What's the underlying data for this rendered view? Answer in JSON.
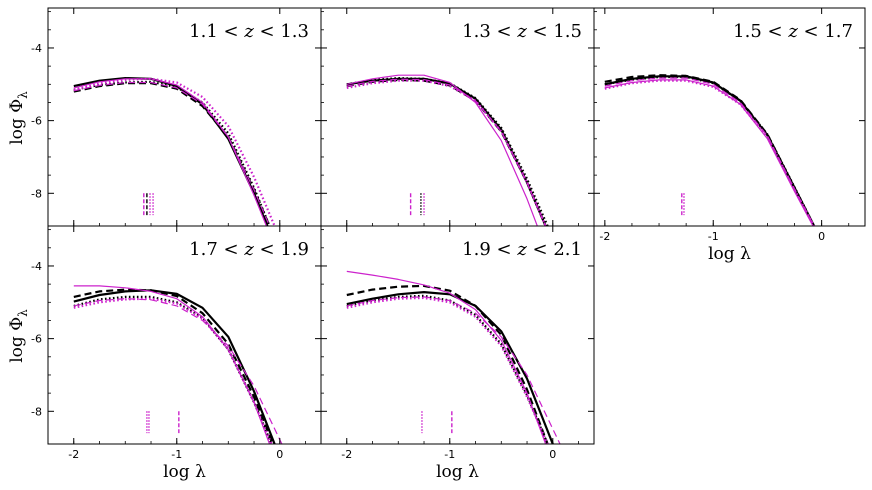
{
  "figure": {
    "ylabel_text": "log Φ",
    "ylabel_sub": "λ",
    "xlabel_text": "log λ"
  },
  "chart_data": [
    {
      "type": "line",
      "panel": "1.1<z<1.3",
      "label": {
        "a": "1.1",
        "b": "1.3"
      },
      "xlim": [
        -2.25,
        0.4
      ],
      "ylim": [
        -8.9,
        -2.9
      ],
      "yticks": [
        -4,
        -6,
        -8
      ],
      "xticks": [
        -2,
        -1,
        0
      ],
      "show_ytick_labels": true,
      "show_xtick_labels": false,
      "show_xlabel": false,
      "series": [
        {
          "color": "#000000",
          "style": "solid",
          "width": 2.2,
          "x": [
            -2.0,
            -1.75,
            -1.5,
            -1.25,
            -1.0,
            -0.75,
            -0.5,
            -0.25,
            -0.12
          ],
          "y": [
            -5.05,
            -4.9,
            -4.83,
            -4.85,
            -5.05,
            -5.55,
            -6.5,
            -8.0,
            -8.9
          ]
        },
        {
          "color": "#000000",
          "style": "dashed",
          "width": 2.2,
          "x": [
            -2.0,
            -1.75,
            -1.5,
            -1.25,
            -1.0,
            -0.75,
            -0.5,
            -0.25,
            -0.1
          ],
          "y": [
            -5.2,
            -5.05,
            -4.97,
            -4.97,
            -5.12,
            -5.6,
            -6.45,
            -7.9,
            -8.9
          ]
        },
        {
          "color": "#000000",
          "style": "dotted",
          "width": 2.2,
          "x": [
            -2.0,
            -1.75,
            -1.5,
            -1.25,
            -1.0,
            -0.75,
            -0.5,
            -0.25,
            -0.1
          ],
          "y": [
            -5.15,
            -5.02,
            -4.95,
            -4.93,
            -5.08,
            -5.5,
            -6.35,
            -7.85,
            -8.9
          ]
        },
        {
          "color": "#cc22cc",
          "style": "solid",
          "width": 1.2,
          "x": [
            -2.0,
            -1.75,
            -1.5,
            -1.25,
            -1.0,
            -0.75,
            -0.5,
            -0.25,
            -0.13
          ],
          "y": [
            -5.1,
            -4.93,
            -4.85,
            -4.85,
            -5.02,
            -5.5,
            -6.45,
            -8.05,
            -8.9
          ]
        },
        {
          "color": "#cc22cc",
          "style": "dashed",
          "width": 1.2,
          "x": [
            -2.0,
            -1.75,
            -1.5,
            -1.25,
            -1.0,
            -0.75,
            -0.5,
            -0.25,
            -0.1
          ],
          "y": [
            -5.18,
            -5.03,
            -4.95,
            -4.95,
            -5.1,
            -5.55,
            -6.45,
            -7.9,
            -8.9
          ]
        },
        {
          "color": "#cc22cc",
          "style": "dotted",
          "width": 2.2,
          "x": [
            -2.0,
            -1.75,
            -1.5,
            -1.25,
            -1.0,
            -0.75,
            -0.5,
            -0.25,
            -0.05
          ],
          "y": [
            -5.15,
            -4.98,
            -4.88,
            -4.85,
            -4.95,
            -5.35,
            -6.15,
            -7.55,
            -8.9
          ]
        }
      ],
      "markers": [
        {
          "x": -1.32,
          "color": "#cc22cc",
          "style": "dashed"
        },
        {
          "x": -1.29,
          "color": "#000000",
          "style": "dashed"
        },
        {
          "x": -1.26,
          "color": "#cc22cc",
          "style": "dotted"
        },
        {
          "x": -1.23,
          "color": "#cc22cc",
          "style": "dotted"
        }
      ]
    },
    {
      "type": "line",
      "panel": "1.3<z<1.5",
      "label": {
        "a": "1.3",
        "b": "1.5"
      },
      "xlim": [
        -2.25,
        0.4
      ],
      "ylim": [
        -8.9,
        -2.9
      ],
      "yticks": [
        -4,
        -6,
        -8
      ],
      "xticks": [
        -2,
        -1,
        0
      ],
      "show_ytick_labels": false,
      "show_xtick_labels": false,
      "show_xlabel": false,
      "series": [
        {
          "color": "#000000",
          "style": "solid",
          "width": 2.2,
          "x": [
            -2.0,
            -1.75,
            -1.5,
            -1.25,
            -1.0,
            -0.75,
            -0.5,
            -0.25,
            -0.07
          ],
          "y": [
            -5.0,
            -4.9,
            -4.85,
            -4.85,
            -4.98,
            -5.4,
            -6.25,
            -7.7,
            -8.9
          ]
        },
        {
          "color": "#000000",
          "style": "dashed",
          "width": 2.2,
          "x": [
            -2.0,
            -1.75,
            -1.5,
            -1.25,
            -1.0,
            -0.75,
            -0.5,
            -0.25,
            -0.07
          ],
          "y": [
            -5.05,
            -4.93,
            -4.88,
            -4.9,
            -5.03,
            -5.45,
            -6.3,
            -7.7,
            -8.9
          ]
        },
        {
          "color": "#000000",
          "style": "dotted",
          "width": 2.2,
          "x": [
            -2.0,
            -1.75,
            -1.5,
            -1.25,
            -1.0,
            -0.75,
            -0.5,
            -0.25,
            -0.05
          ],
          "y": [
            -5.0,
            -4.88,
            -4.83,
            -4.85,
            -4.97,
            -5.38,
            -6.2,
            -7.6,
            -8.9
          ]
        },
        {
          "color": "#cc22cc",
          "style": "solid",
          "width": 1.2,
          "x": [
            -2.0,
            -1.75,
            -1.5,
            -1.25,
            -1.0,
            -0.75,
            -0.5,
            -0.25,
            -0.15
          ],
          "y": [
            -5.0,
            -4.85,
            -4.75,
            -4.75,
            -4.95,
            -5.5,
            -6.55,
            -8.15,
            -8.9
          ]
        },
        {
          "color": "#cc22cc",
          "style": "dashed",
          "width": 1.2,
          "x": [
            -2.0,
            -1.75,
            -1.5,
            -1.25,
            -1.0,
            -0.75,
            -0.5,
            -0.25,
            -0.07
          ],
          "y": [
            -5.05,
            -4.92,
            -4.86,
            -4.87,
            -5.02,
            -5.45,
            -6.3,
            -7.7,
            -8.9
          ]
        },
        {
          "color": "#cc22cc",
          "style": "dotted",
          "width": 2.2,
          "x": [
            -2.0,
            -1.75,
            -1.5,
            -1.25,
            -1.0,
            -0.75,
            -0.5,
            -0.25,
            -0.07
          ],
          "y": [
            -5.1,
            -4.97,
            -4.9,
            -4.9,
            -5.05,
            -5.45,
            -6.3,
            -7.7,
            -8.9
          ]
        }
      ],
      "markers": [
        {
          "x": -1.38,
          "color": "#cc22cc",
          "style": "dashed"
        },
        {
          "x": -1.28,
          "color": "#000000",
          "style": "dotted"
        },
        {
          "x": -1.25,
          "color": "#cc22cc",
          "style": "dotted"
        }
      ]
    },
    {
      "type": "line",
      "panel": "1.5<z<1.7",
      "label": {
        "a": "1.5",
        "b": "1.7"
      },
      "xlim": [
        -2.1,
        0.4
      ],
      "ylim": [
        -8.9,
        -2.9
      ],
      "yticks": [
        -4,
        -6,
        -8
      ],
      "xticks": [
        -2,
        -1,
        0
      ],
      "show_ytick_labels": false,
      "show_xtick_labels": true,
      "show_xlabel": true,
      "series": [
        {
          "color": "#000000",
          "style": "solid",
          "width": 2.2,
          "x": [
            -2.0,
            -1.75,
            -1.5,
            -1.25,
            -1.0,
            -0.75,
            -0.5,
            -0.25,
            -0.07
          ],
          "y": [
            -5.0,
            -4.85,
            -4.78,
            -4.78,
            -4.95,
            -5.45,
            -6.4,
            -7.85,
            -8.9
          ]
        },
        {
          "color": "#000000",
          "style": "dashed",
          "width": 2.2,
          "x": [
            -2.0,
            -1.75,
            -1.5,
            -1.25,
            -1.0,
            -0.75,
            -0.5,
            -0.25,
            -0.07
          ],
          "y": [
            -4.93,
            -4.8,
            -4.75,
            -4.77,
            -4.93,
            -5.43,
            -6.38,
            -7.85,
            -8.9
          ]
        },
        {
          "color": "#000000",
          "style": "dotted",
          "width": 2.2,
          "x": [
            -2.0,
            -1.75,
            -1.5,
            -1.25,
            -1.0,
            -0.75,
            -0.5,
            -0.25,
            -0.07
          ],
          "y": [
            -5.0,
            -4.87,
            -4.8,
            -4.8,
            -4.97,
            -5.45,
            -6.38,
            -7.83,
            -8.9
          ]
        },
        {
          "color": "#cc22cc",
          "style": "solid",
          "width": 1.2,
          "x": [
            -2.0,
            -1.75,
            -1.5,
            -1.25,
            -1.0,
            -0.75,
            -0.5,
            -0.25,
            -0.08
          ],
          "y": [
            -5.1,
            -4.95,
            -4.88,
            -4.88,
            -5.05,
            -5.55,
            -6.5,
            -7.95,
            -8.9
          ]
        },
        {
          "color": "#cc22cc",
          "style": "dashed",
          "width": 1.2,
          "x": [
            -2.0,
            -1.75,
            -1.5,
            -1.25,
            -1.0,
            -0.75,
            -0.5,
            -0.25,
            -0.07
          ],
          "y": [
            -5.05,
            -4.9,
            -4.83,
            -4.83,
            -5.0,
            -5.5,
            -6.42,
            -7.88,
            -8.9
          ]
        },
        {
          "color": "#cc22cc",
          "style": "dotted",
          "width": 2.2,
          "x": [
            -2.0,
            -1.75,
            -1.5,
            -1.25,
            -1.0,
            -0.75,
            -0.5,
            -0.25,
            -0.07
          ],
          "y": [
            -5.12,
            -4.97,
            -4.9,
            -4.9,
            -5.07,
            -5.55,
            -6.45,
            -7.9,
            -8.9
          ]
        }
      ],
      "markers": [
        {
          "x": -1.29,
          "color": "#cc22cc",
          "style": "dashed"
        },
        {
          "x": -1.27,
          "color": "#cc22cc",
          "style": "dotted"
        }
      ]
    },
    {
      "type": "line",
      "panel": "1.7<z<1.9",
      "label": {
        "a": "1.7",
        "b": "1.9"
      },
      "xlim": [
        -2.25,
        0.4
      ],
      "ylim": [
        -8.9,
        -2.9
      ],
      "yticks": [
        -4,
        -6,
        -8
      ],
      "xticks": [
        -2,
        -1,
        0
      ],
      "show_ytick_labels": true,
      "show_xtick_labels": true,
      "show_xlabel": true,
      "series": [
        {
          "color": "#000000",
          "style": "solid",
          "width": 2.2,
          "x": [
            -2.0,
            -1.75,
            -1.5,
            -1.25,
            -1.0,
            -0.75,
            -0.5,
            -0.25,
            -0.05
          ],
          "y": [
            -4.98,
            -4.8,
            -4.7,
            -4.67,
            -4.77,
            -5.15,
            -5.95,
            -7.45,
            -8.9
          ]
        },
        {
          "color": "#000000",
          "style": "dashed",
          "width": 2.2,
          "x": [
            -2.0,
            -1.75,
            -1.5,
            -1.25,
            -1.0,
            -0.75,
            -0.5,
            -0.25,
            -0.07
          ],
          "y": [
            -4.85,
            -4.7,
            -4.65,
            -4.67,
            -4.83,
            -5.3,
            -6.15,
            -7.6,
            -8.9
          ]
        },
        {
          "color": "#000000",
          "style": "dotted",
          "width": 2.2,
          "x": [
            -2.0,
            -1.75,
            -1.5,
            -1.25,
            -1.0,
            -0.75,
            -0.5,
            -0.25,
            -0.08
          ],
          "y": [
            -5.1,
            -4.92,
            -4.85,
            -4.85,
            -5.0,
            -5.42,
            -6.3,
            -7.75,
            -8.9
          ]
        },
        {
          "color": "#cc22cc",
          "style": "solid",
          "width": 1.2,
          "x": [
            -2.0,
            -1.75,
            -1.5,
            -1.25,
            -1.0,
            -0.75,
            -0.5,
            -0.25,
            -0.1
          ],
          "y": [
            -4.55,
            -4.55,
            -4.6,
            -4.7,
            -4.9,
            -5.4,
            -6.3,
            -7.75,
            -8.9
          ]
        },
        {
          "color": "#cc22cc",
          "style": "dashed",
          "width": 1.2,
          "x": [
            -2.0,
            -1.75,
            -1.5,
            -1.25,
            -1.0,
            -0.75,
            -0.5,
            -0.25,
            0.02
          ],
          "y": [
            -5.1,
            -4.95,
            -4.9,
            -4.93,
            -5.1,
            -5.5,
            -6.2,
            -7.3,
            -8.9
          ]
        },
        {
          "color": "#cc22cc",
          "style": "dotted",
          "width": 2.2,
          "x": [
            -2.0,
            -1.75,
            -1.5,
            -1.25,
            -1.0,
            -0.75,
            -0.5,
            -0.25,
            -0.08
          ],
          "y": [
            -5.15,
            -5.0,
            -4.92,
            -4.9,
            -5.03,
            -5.45,
            -6.3,
            -7.75,
            -8.9
          ]
        }
      ],
      "markers": [
        {
          "x": -1.29,
          "color": "#cc22cc",
          "style": "dotted"
        },
        {
          "x": -1.27,
          "color": "#cc22cc",
          "style": "dotted"
        },
        {
          "x": -0.98,
          "color": "#cc22cc",
          "style": "dashed"
        }
      ]
    },
    {
      "type": "line",
      "panel": "1.9<z<2.1",
      "label": {
        "a": "1.9",
        "b": "2.1"
      },
      "xlim": [
        -2.25,
        0.4
      ],
      "ylim": [
        -8.9,
        -2.9
      ],
      "yticks": [
        -4,
        -6,
        -8
      ],
      "xticks": [
        -2,
        -1,
        0
      ],
      "show_ytick_labels": false,
      "show_xtick_labels": true,
      "show_xlabel": true,
      "series": [
        {
          "color": "#000000",
          "style": "solid",
          "width": 2.2,
          "x": [
            -2.0,
            -1.75,
            -1.5,
            -1.25,
            -1.0,
            -0.75,
            -0.5,
            -0.25,
            0.0
          ],
          "y": [
            -5.05,
            -4.9,
            -4.78,
            -4.72,
            -4.78,
            -5.1,
            -5.8,
            -7.1,
            -8.9
          ]
        },
        {
          "color": "#000000",
          "style": "dashed",
          "width": 2.2,
          "x": [
            -2.0,
            -1.75,
            -1.5,
            -1.25,
            -1.0,
            -0.75,
            -0.5,
            -0.25,
            -0.05
          ],
          "y": [
            -4.8,
            -4.65,
            -4.57,
            -4.55,
            -4.68,
            -5.1,
            -5.9,
            -7.4,
            -8.9
          ]
        },
        {
          "color": "#000000",
          "style": "dotted",
          "width": 2.2,
          "x": [
            -2.0,
            -1.75,
            -1.5,
            -1.25,
            -1.0,
            -0.75,
            -0.5,
            -0.25,
            -0.05
          ],
          "y": [
            -5.1,
            -4.95,
            -4.85,
            -4.82,
            -4.95,
            -5.35,
            -6.15,
            -7.55,
            -8.9
          ]
        },
        {
          "color": "#cc22cc",
          "style": "solid",
          "width": 1.2,
          "x": [
            -2.0,
            -1.75,
            -1.5,
            -1.25,
            -1.0,
            -0.75,
            -0.5,
            -0.25,
            -0.07
          ],
          "y": [
            -4.15,
            -4.25,
            -4.37,
            -4.52,
            -4.75,
            -5.2,
            -6.05,
            -7.5,
            -8.9
          ]
        },
        {
          "color": "#cc22cc",
          "style": "dashed",
          "width": 1.2,
          "x": [
            -2.0,
            -1.75,
            -1.5,
            -1.25,
            -1.0,
            -0.75,
            -0.5,
            -0.25,
            0.07
          ],
          "y": [
            -5.1,
            -4.95,
            -4.87,
            -4.85,
            -4.95,
            -5.3,
            -5.95,
            -7.0,
            -8.9
          ]
        },
        {
          "color": "#cc22cc",
          "style": "dotted",
          "width": 2.2,
          "x": [
            -2.0,
            -1.75,
            -1.5,
            -1.25,
            -1.0,
            -0.75,
            -0.5,
            -0.25,
            -0.05
          ],
          "y": [
            -5.15,
            -5.0,
            -4.9,
            -4.88,
            -5.0,
            -5.4,
            -6.2,
            -7.6,
            -8.9
          ]
        }
      ],
      "markers": [
        {
          "x": -1.27,
          "color": "#cc22cc",
          "style": "dotted"
        },
        {
          "x": -0.98,
          "color": "#cc22cc",
          "style": "dashed"
        }
      ]
    }
  ]
}
